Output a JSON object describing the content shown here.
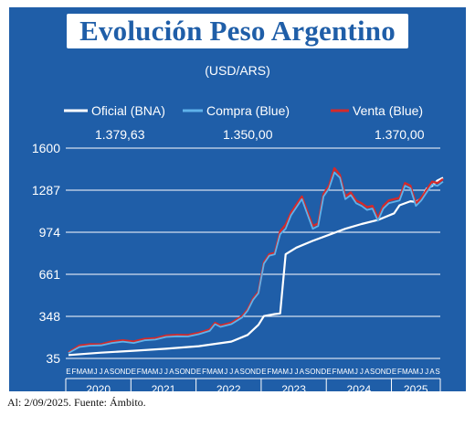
{
  "title": "Evolución Peso Argentino",
  "footnote": "Al: 2/09/2025. Fuente: Ámbito.",
  "colors": {
    "background": "#1f5ea8",
    "oficial": "#ffffff",
    "compra": "#5fb2ea",
    "venta": "#d42a2a"
  },
  "chart_data": {
    "type": "line",
    "subtitle": "(USD/ARS)",
    "yticks": [
      35,
      348,
      661,
      974,
      1287,
      1600
    ],
    "ylim": [
      35,
      1600
    ],
    "xlim": [
      0,
      69
    ],
    "grid": true,
    "legend_position": "top",
    "series": [
      {
        "name": "Oficial (BNA)",
        "last_value_label": "1.379,63",
        "points": [
          [
            0,
            60
          ],
          [
            6,
            78
          ],
          [
            12,
            92
          ],
          [
            18,
            107
          ],
          [
            24,
            126
          ],
          [
            30,
            160
          ],
          [
            33,
            210
          ],
          [
            35,
            285
          ],
          [
            36,
            350
          ],
          [
            38,
            365
          ],
          [
            39,
            370
          ],
          [
            40,
            810
          ],
          [
            41,
            835
          ],
          [
            42,
            860
          ],
          [
            45,
            910
          ],
          [
            48,
            955
          ],
          [
            51,
            1000
          ],
          [
            54,
            1035
          ],
          [
            57,
            1065
          ],
          [
            60,
            1115
          ],
          [
            61,
            1175
          ],
          [
            63,
            1205
          ],
          [
            64,
            1200
          ],
          [
            65,
            1225
          ],
          [
            66,
            1300
          ],
          [
            67,
            1320
          ],
          [
            68,
            1360
          ],
          [
            69,
            1380
          ]
        ]
      },
      {
        "name": "Compra (Blue)",
        "last_value_label": "1.350,00",
        "points": [
          [
            0,
            75
          ],
          [
            2,
            120
          ],
          [
            4,
            130
          ],
          [
            6,
            132
          ],
          [
            8,
            150
          ],
          [
            10,
            160
          ],
          [
            12,
            150
          ],
          [
            14,
            170
          ],
          [
            16,
            175
          ],
          [
            18,
            195
          ],
          [
            20,
            200
          ],
          [
            22,
            198
          ],
          [
            24,
            215
          ],
          [
            26,
            240
          ],
          [
            27,
            290
          ],
          [
            28,
            270
          ],
          [
            30,
            290
          ],
          [
            32,
            340
          ],
          [
            33,
            390
          ],
          [
            34,
            470
          ],
          [
            35,
            520
          ],
          [
            36,
            740
          ],
          [
            37,
            800
          ],
          [
            38,
            810
          ],
          [
            39,
            960
          ],
          [
            40,
            1000
          ],
          [
            41,
            1100
          ],
          [
            42,
            1160
          ],
          [
            43,
            1220
          ],
          [
            44,
            1110
          ],
          [
            45,
            1000
          ],
          [
            46,
            1020
          ],
          [
            47,
            1240
          ],
          [
            48,
            1300
          ],
          [
            49,
            1420
          ],
          [
            50,
            1380
          ],
          [
            51,
            1220
          ],
          [
            52,
            1250
          ],
          [
            53,
            1190
          ],
          [
            54,
            1170
          ],
          [
            55,
            1140
          ],
          [
            56,
            1150
          ],
          [
            57,
            1060
          ],
          [
            58,
            1150
          ],
          [
            59,
            1190
          ],
          [
            60,
            1200
          ],
          [
            61,
            1210
          ],
          [
            62,
            1320
          ],
          [
            63,
            1300
          ],
          [
            64,
            1170
          ],
          [
            65,
            1210
          ],
          [
            66,
            1270
          ],
          [
            67,
            1330
          ],
          [
            68,
            1320
          ],
          [
            69,
            1350
          ]
        ]
      },
      {
        "name": "Venta (Blue)",
        "last_value_label": "1.370,00",
        "points": [
          [
            0,
            80
          ],
          [
            2,
            130
          ],
          [
            4,
            140
          ],
          [
            6,
            140
          ],
          [
            8,
            160
          ],
          [
            10,
            170
          ],
          [
            12,
            160
          ],
          [
            14,
            180
          ],
          [
            16,
            185
          ],
          [
            18,
            205
          ],
          [
            20,
            210
          ],
          [
            22,
            208
          ],
          [
            24,
            225
          ],
          [
            26,
            250
          ],
          [
            27,
            300
          ],
          [
            28,
            280
          ],
          [
            30,
            300
          ],
          [
            32,
            350
          ],
          [
            33,
            400
          ],
          [
            34,
            480
          ],
          [
            35,
            530
          ],
          [
            36,
            750
          ],
          [
            37,
            810
          ],
          [
            38,
            820
          ],
          [
            39,
            980
          ],
          [
            40,
            1030
          ],
          [
            41,
            1120
          ],
          [
            42,
            1180
          ],
          [
            43,
            1240
          ],
          [
            44,
            1130
          ],
          [
            45,
            1020
          ],
          [
            46,
            1040
          ],
          [
            47,
            1260
          ],
          [
            48,
            1320
          ],
          [
            49,
            1450
          ],
          [
            50,
            1400
          ],
          [
            51,
            1240
          ],
          [
            52,
            1270
          ],
          [
            53,
            1210
          ],
          [
            54,
            1190
          ],
          [
            55,
            1160
          ],
          [
            56,
            1170
          ],
          [
            57,
            1080
          ],
          [
            58,
            1170
          ],
          [
            59,
            1210
          ],
          [
            60,
            1220
          ],
          [
            61,
            1230
          ],
          [
            62,
            1340
          ],
          [
            63,
            1320
          ],
          [
            64,
            1190
          ],
          [
            65,
            1230
          ],
          [
            66,
            1290
          ],
          [
            67,
            1350
          ],
          [
            68,
            1340
          ],
          [
            69,
            1370
          ]
        ]
      }
    ],
    "month_letters": [
      "E",
      "F",
      "M",
      "A",
      "M",
      "J",
      "J",
      "A",
      "S",
      "O",
      "N",
      "D",
      "E",
      "F",
      "M",
      "A",
      "M",
      "J",
      "J",
      "A",
      "S",
      "O",
      "N",
      "D",
      "E",
      "F",
      "M",
      "A",
      "M",
      "J",
      "J",
      "A",
      "S",
      "O",
      "N",
      "D",
      "E",
      "F",
      "M",
      "A",
      "M",
      "J",
      "J",
      "A",
      "S",
      "O",
      "N",
      "D",
      "E",
      "F",
      "M",
      "A",
      "M",
      "J",
      "J",
      "A",
      "S",
      "O",
      "N",
      "D",
      "E",
      "F",
      "M",
      "A",
      "M",
      "J",
      "J",
      "A",
      "S"
    ],
    "years": [
      "2020",
      "2021",
      "2022",
      "2023",
      "2024",
      "2025"
    ]
  }
}
